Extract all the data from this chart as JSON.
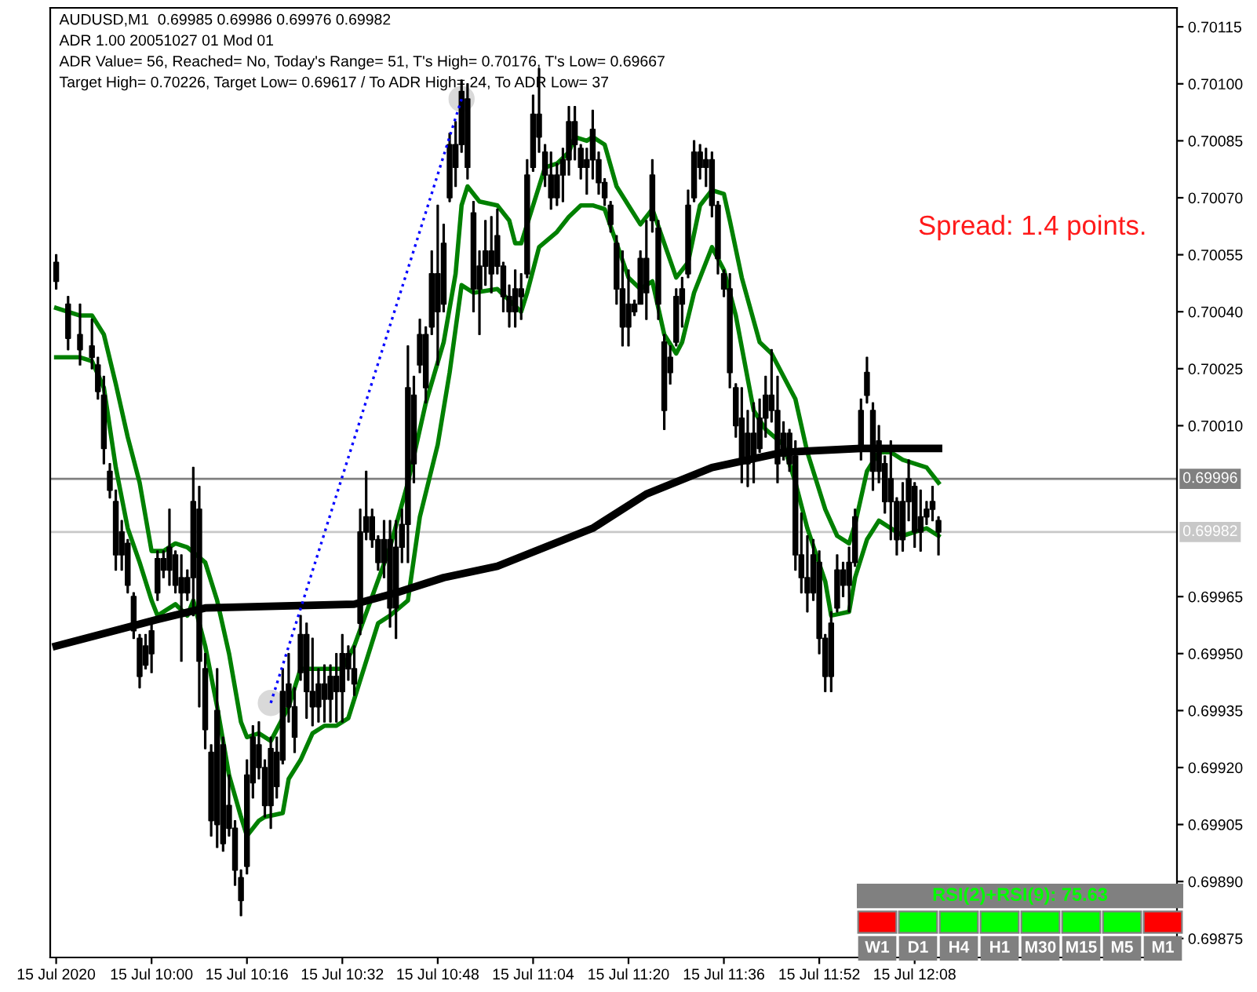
{
  "chart_data": [
    {
      "type": "candlestick",
      "color": "#000000",
      "ylim": [
        0.6987,
        0.7012
      ],
      "yticks": [
        {
          "value": 0.70115,
          "label": "0.70115"
        },
        {
          "value": 0.701,
          "label": "0.70100"
        },
        {
          "value": 0.70085,
          "label": "0.70085"
        },
        {
          "value": 0.7007,
          "label": "0.70070"
        },
        {
          "value": 0.70055,
          "label": "0.70055"
        },
        {
          "value": 0.7004,
          "label": "0.70040"
        },
        {
          "value": 0.70025,
          "label": "0.70025"
        },
        {
          "value": 0.7001,
          "label": "0.70010"
        },
        {
          "value": 0.69965,
          "label": "0.69965"
        },
        {
          "value": 0.6995,
          "label": "0.69950"
        },
        {
          "value": 0.69935,
          "label": "0.69935"
        },
        {
          "value": 0.6992,
          "label": "0.69920"
        },
        {
          "value": 0.69905,
          "label": "0.69905"
        },
        {
          "value": 0.6989,
          "label": "0.69890"
        },
        {
          "value": 0.69875,
          "label": "0.69875"
        }
      ],
      "xlim": [
        "2020-07-15T09:43",
        "2020-07-15T12:52"
      ],
      "xticks": [
        {
          "value": "2020-07-15T09:44",
          "label": "15 Jul 2020"
        },
        {
          "value": "2020-07-15T10:00",
          "label": "15 Jul 10:00"
        },
        {
          "value": "2020-07-15T10:16",
          "label": "15 Jul 10:16"
        },
        {
          "value": "2020-07-15T10:32",
          "label": "15 Jul 10:32"
        },
        {
          "value": "2020-07-15T10:48",
          "label": "15 Jul 10:48"
        },
        {
          "value": "2020-07-15T11:04",
          "label": "15 Jul 11:04"
        },
        {
          "value": "2020-07-15T11:20",
          "label": "15 Jul 11:20"
        },
        {
          "value": "2020-07-15T11:36",
          "label": "15 Jul 11:36"
        },
        {
          "value": "2020-07-15T11:52",
          "label": "15 Jul 11:52"
        },
        {
          "value": "2020-07-15T12:08",
          "label": "15 Jul 12:08"
        }
      ],
      "annotations": [
        "AUDUSD,M1  0.69985 0.69986 0.69976 0.69982",
        "ADR 1.00 20051027 01 Mod 01",
        "ADR Value= 56, Reached= No, Today's Range= 51, T's High= 0.70176, T's Low= 0.69667",
        "Target High= 0.70226, Target Low= 0.69617 / To ADR High= 24, To ADR Low= 37",
        "Spread: 1.4 points."
      ],
      "ref_lines": [
        {
          "axis": "y",
          "value": 0.69996,
          "label": "0.69996",
          "color": "#808080"
        },
        {
          "axis": "y",
          "value": 0.69982,
          "label": "0.69982",
          "color": "#c8c8c8"
        }
      ],
      "x": [
        "2020-07-15T09:44",
        "2020-07-15T09:46",
        "2020-07-15T09:48",
        "2020-07-15T09:50",
        "2020-07-15T09:51",
        "2020-07-15T09:52",
        "2020-07-15T09:53",
        "2020-07-15T09:54",
        "2020-07-15T09:55",
        "2020-07-15T09:56",
        "2020-07-15T09:57",
        "2020-07-15T09:58",
        "2020-07-15T09:59",
        "2020-07-15T10:00",
        "2020-07-15T10:01",
        "2020-07-15T10:02",
        "2020-07-15T10:03",
        "2020-07-15T10:04",
        "2020-07-15T10:05",
        "2020-07-15T10:06",
        "2020-07-15T10:07",
        "2020-07-15T10:08",
        "2020-07-15T10:09",
        "2020-07-15T10:10",
        "2020-07-15T10:11",
        "2020-07-15T10:12",
        "2020-07-15T10:13",
        "2020-07-15T10:14",
        "2020-07-15T10:15",
        "2020-07-15T10:16",
        "2020-07-15T10:17",
        "2020-07-15T10:18",
        "2020-07-15T10:19",
        "2020-07-15T10:20",
        "2020-07-15T10:21",
        "2020-07-15T10:22",
        "2020-07-15T10:23",
        "2020-07-15T10:24",
        "2020-07-15T10:25",
        "2020-07-15T10:26",
        "2020-07-15T10:27",
        "2020-07-15T10:28",
        "2020-07-15T10:29",
        "2020-07-15T10:30",
        "2020-07-15T10:31",
        "2020-07-15T10:32",
        "2020-07-15T10:33",
        "2020-07-15T10:34",
        "2020-07-15T10:35",
        "2020-07-15T10:36",
        "2020-07-15T10:37",
        "2020-07-15T10:38",
        "2020-07-15T10:39",
        "2020-07-15T10:40",
        "2020-07-15T10:41",
        "2020-07-15T10:42",
        "2020-07-15T10:43",
        "2020-07-15T10:44",
        "2020-07-15T10:45",
        "2020-07-15T10:46",
        "2020-07-15T10:47",
        "2020-07-15T10:48",
        "2020-07-15T10:49",
        "2020-07-15T10:50",
        "2020-07-15T10:51",
        "2020-07-15T10:52",
        "2020-07-15T10:53",
        "2020-07-15T10:54",
        "2020-07-15T10:55",
        "2020-07-15T10:56",
        "2020-07-15T10:57",
        "2020-07-15T10:58",
        "2020-07-15T10:59",
        "2020-07-15T11:00",
        "2020-07-15T11:01",
        "2020-07-15T11:02",
        "2020-07-15T11:03",
        "2020-07-15T11:04",
        "2020-07-15T11:05",
        "2020-07-15T11:06",
        "2020-07-15T11:07",
        "2020-07-15T11:08",
        "2020-07-15T11:09",
        "2020-07-15T11:10",
        "2020-07-15T11:11",
        "2020-07-15T11:12",
        "2020-07-15T11:13",
        "2020-07-15T11:14",
        "2020-07-15T11:15",
        "2020-07-15T11:16",
        "2020-07-15T11:17",
        "2020-07-15T11:18",
        "2020-07-15T11:19",
        "2020-07-15T11:20",
        "2020-07-15T11:21",
        "2020-07-15T11:22",
        "2020-07-15T11:23",
        "2020-07-15T11:24",
        "2020-07-15T11:25",
        "2020-07-15T11:26",
        "2020-07-15T11:27",
        "2020-07-15T11:28",
        "2020-07-15T11:29",
        "2020-07-15T11:30",
        "2020-07-15T11:31",
        "2020-07-15T11:32",
        "2020-07-15T11:33",
        "2020-07-15T11:34",
        "2020-07-15T11:35",
        "2020-07-15T11:36",
        "2020-07-15T11:37",
        "2020-07-15T11:38",
        "2020-07-15T11:39",
        "2020-07-15T11:40",
        "2020-07-15T11:41",
        "2020-07-15T11:42",
        "2020-07-15T11:43",
        "2020-07-15T11:44",
        "2020-07-15T11:45",
        "2020-07-15T11:46",
        "2020-07-15T11:47",
        "2020-07-15T11:48",
        "2020-07-15T11:49",
        "2020-07-15T11:50",
        "2020-07-15T11:51",
        "2020-07-15T11:52",
        "2020-07-15T11:53",
        "2020-07-15T11:54",
        "2020-07-15T11:55",
        "2020-07-15T11:56",
        "2020-07-15T11:57",
        "2020-07-15T11:58",
        "2020-07-15T11:59",
        "2020-07-15T12:00",
        "2020-07-15T12:01",
        "2020-07-15T12:02",
        "2020-07-15T12:03",
        "2020-07-15T12:04",
        "2020-07-15T12:05",
        "2020-07-15T12:06",
        "2020-07-15T12:07",
        "2020-07-15T12:08",
        "2020-07-15T12:09",
        "2020-07-15T12:10",
        "2020-07-15T12:11",
        "2020-07-15T12:12"
      ],
      "ohlc": [
        [
          0.70053,
          0.70055,
          0.70046,
          0.70048
        ],
        [
          0.70042,
          0.70044,
          0.7003,
          0.70033
        ],
        [
          0.70034,
          0.70042,
          0.70026,
          0.7003
        ],
        [
          0.70031,
          0.70038,
          0.70025,
          0.70028
        ],
        [
          0.70026,
          0.70028,
          0.70017,
          0.70019
        ],
        [
          0.70018,
          0.70023,
          0.7,
          0.70004
        ],
        [
          0.69998,
          0.7,
          0.69991,
          0.69993
        ],
        [
          0.6999,
          0.69993,
          0.69972,
          0.69976
        ],
        [
          0.69976,
          0.69985,
          0.69972,
          0.69982
        ],
        [
          0.69979,
          0.6998,
          0.69966,
          0.69968
        ],
        [
          0.69965,
          0.69966,
          0.69954,
          0.69956
        ],
        [
          0.69954,
          0.69955,
          0.69941,
          0.69944
        ],
        [
          0.69947,
          0.69955,
          0.69946,
          0.69952
        ],
        [
          0.6995,
          0.69958,
          0.69945,
          0.69956
        ],
        [
          0.69966,
          0.69977,
          0.69964,
          0.69975
        ],
        [
          0.69975,
          0.69977,
          0.6997,
          0.69972
        ],
        [
          0.69972,
          0.69988,
          0.69968,
          0.69978
        ],
        [
          0.69976,
          0.69977,
          0.69966,
          0.69968
        ],
        [
          0.6997,
          0.69976,
          0.69948,
          0.69966
        ],
        [
          0.69966,
          0.69972,
          0.69964,
          0.6997
        ],
        [
          0.6997,
          0.69999,
          0.6996,
          0.6999
        ],
        [
          0.69988,
          0.69994,
          0.69936,
          0.69948
        ],
        [
          0.69946,
          0.6995,
          0.69925,
          0.6993
        ],
        [
          0.69924,
          0.69926,
          0.69902,
          0.69906
        ],
        [
          0.69905,
          0.69946,
          0.69899,
          0.69935
        ],
        [
          0.69926,
          0.69928,
          0.69898,
          0.699
        ],
        [
          0.69904,
          0.69918,
          0.69902,
          0.6991
        ],
        [
          0.69904,
          0.69906,
          0.69889,
          0.69893
        ],
        [
          0.69891,
          0.69893,
          0.69881,
          0.69885
        ],
        [
          0.69894,
          0.69922,
          0.69892,
          0.69918
        ],
        [
          0.69916,
          0.69931,
          0.69912,
          0.69928
        ],
        [
          0.69926,
          0.69932,
          0.69917,
          0.6992
        ],
        [
          0.6992,
          0.69922,
          0.69907,
          0.6991
        ],
        [
          0.6991,
          0.69928,
          0.69904,
          0.69925
        ],
        [
          0.69924,
          0.69928,
          0.69912,
          0.69915
        ],
        [
          0.69922,
          0.69946,
          0.69921,
          0.6994
        ],
        [
          0.69942,
          0.6995,
          0.69932,
          0.69936
        ],
        [
          0.69936,
          0.69941,
          0.69924,
          0.69928
        ],
        [
          0.69945,
          0.6996,
          0.69943,
          0.69955
        ],
        [
          0.69955,
          0.69958,
          0.69933,
          0.6994
        ],
        [
          0.6994,
          0.69954,
          0.69931,
          0.69936
        ],
        [
          0.69936,
          0.69946,
          0.69932,
          0.69942
        ],
        [
          0.69942,
          0.69947,
          0.69932,
          0.69938
        ],
        [
          0.69938,
          0.69947,
          0.69932,
          0.69944
        ],
        [
          0.69944,
          0.6995,
          0.69932,
          0.6994
        ],
        [
          0.6994,
          0.69955,
          0.69932,
          0.6995
        ],
        [
          0.6995,
          0.69952,
          0.69943,
          0.69946
        ],
        [
          0.69946,
          0.69952,
          0.69939,
          0.69942
        ],
        [
          0.69958,
          0.69988,
          0.69955,
          0.69982
        ],
        [
          0.69982,
          0.69998,
          0.6998,
          0.69986
        ],
        [
          0.69986,
          0.69988,
          0.69978,
          0.6998
        ],
        [
          0.6998,
          0.69981,
          0.69972,
          0.69974
        ],
        [
          0.69974,
          0.69985,
          0.6997,
          0.6998
        ],
        [
          0.6998,
          0.69985,
          0.69957,
          0.69962
        ],
        [
          0.69962,
          0.69985,
          0.69954,
          0.69978
        ],
        [
          0.69978,
          0.69988,
          0.69974,
          0.69984
        ],
        [
          0.69984,
          0.70031,
          0.69974,
          0.7002
        ],
        [
          0.70018,
          0.70023,
          0.69995,
          0.7
        ],
        [
          0.70026,
          0.70038,
          0.70024,
          0.70034
        ],
        [
          0.70034,
          0.70036,
          0.70016,
          0.7002
        ],
        [
          0.70036,
          0.70056,
          0.70034,
          0.7005
        ],
        [
          0.7005,
          0.70068,
          0.70026,
          0.7004
        ],
        [
          0.70042,
          0.70063,
          0.7004,
          0.70058
        ],
        [
          0.7007,
          0.70087,
          0.70069,
          0.70084
        ],
        [
          0.70084,
          0.7009,
          0.70073,
          0.70078
        ],
        [
          0.70084,
          0.70101,
          0.70082,
          0.70098
        ],
        [
          0.70096,
          0.701,
          0.70075,
          0.70078
        ],
        [
          0.70066,
          0.70069,
          0.7004,
          0.70046
        ],
        [
          0.70046,
          0.70056,
          0.70034,
          0.70052
        ],
        [
          0.70052,
          0.70064,
          0.70047,
          0.70056
        ],
        [
          0.70056,
          0.70065,
          0.70045,
          0.7005
        ],
        [
          0.70052,
          0.70067,
          0.7005,
          0.7006
        ],
        [
          0.70052,
          0.70053,
          0.7004,
          0.70044
        ],
        [
          0.70044,
          0.70047,
          0.70036,
          0.7004
        ],
        [
          0.7004,
          0.70051,
          0.70036,
          0.70046
        ],
        [
          0.70046,
          0.7005,
          0.70038,
          0.70044
        ],
        [
          0.7005,
          0.7008,
          0.70049,
          0.70076
        ],
        [
          0.70078,
          0.70097,
          0.70077,
          0.70092
        ],
        [
          0.70092,
          0.70104,
          0.70082,
          0.70086
        ],
        [
          0.70082,
          0.70084,
          0.70073,
          0.70076
        ],
        [
          0.70076,
          0.70082,
          0.70067,
          0.7007
        ],
        [
          0.7007,
          0.70079,
          0.70068,
          0.70076
        ],
        [
          0.70076,
          0.70083,
          0.70069,
          0.7008
        ],
        [
          0.7008,
          0.70094,
          0.70076,
          0.7009
        ],
        [
          0.7009,
          0.70094,
          0.7008,
          0.70084
        ],
        [
          0.70083,
          0.70084,
          0.70075,
          0.70078
        ],
        [
          0.70078,
          0.70083,
          0.70071,
          0.7008
        ],
        [
          0.7008,
          0.70093,
          0.70075,
          0.70088
        ],
        [
          0.7008,
          0.70082,
          0.70071,
          0.70074
        ],
        [
          0.70074,
          0.70075,
          0.70068,
          0.7007
        ],
        [
          0.70068,
          0.70069,
          0.70061,
          0.70063
        ],
        [
          0.70058,
          0.7006,
          0.70042,
          0.70046
        ],
        [
          0.70046,
          0.70056,
          0.70031,
          0.70036
        ],
        [
          0.70036,
          0.70051,
          0.70031,
          0.70042
        ],
        [
          0.70042,
          0.70043,
          0.70039,
          0.7004
        ],
        [
          0.70042,
          0.70056,
          0.70042,
          0.70054
        ],
        [
          0.70054,
          0.70064,
          0.70038,
          0.70045
        ],
        [
          0.70064,
          0.7008,
          0.70061,
          0.70076
        ],
        [
          0.70062,
          0.70064,
          0.70038,
          0.70042
        ],
        [
          0.70032,
          0.70034,
          0.70009,
          0.70014
        ],
        [
          0.70024,
          0.70031,
          0.70021,
          0.70028
        ],
        [
          0.70032,
          0.70046,
          0.70031,
          0.70044
        ],
        [
          0.70042,
          0.70049,
          0.70036,
          0.70046
        ],
        [
          0.7005,
          0.70072,
          0.70049,
          0.70068
        ],
        [
          0.7007,
          0.70085,
          0.70069,
          0.70082
        ],
        [
          0.70082,
          0.70084,
          0.70075,
          0.70078
        ],
        [
          0.70078,
          0.70083,
          0.70073,
          0.7008
        ],
        [
          0.7008,
          0.70082,
          0.70065,
          0.70068
        ],
        [
          0.70068,
          0.70069,
          0.7005,
          0.70054
        ],
        [
          0.7005,
          0.70051,
          0.70044,
          0.70046
        ],
        [
          0.70046,
          0.7005,
          0.7002,
          0.70024
        ],
        [
          0.7002,
          0.70021,
          0.70007,
          0.7001
        ],
        [
          0.70012,
          0.7002,
          0.69995,
          0.7
        ],
        [
          0.7,
          0.70014,
          0.69994,
          0.70008
        ],
        [
          0.70008,
          0.70016,
          0.69995,
          0.70002
        ],
        [
          0.70004,
          0.70017,
          0.70003,
          0.70012
        ],
        [
          0.70012,
          0.70023,
          0.70007,
          0.70018
        ],
        [
          0.70018,
          0.7003,
          0.70011,
          0.70014
        ],
        [
          0.70014,
          0.70023,
          0.69995,
          0.7
        ],
        [
          0.70002,
          0.70011,
          0.70001,
          0.70008
        ],
        [
          0.70008,
          0.70009,
          0.69998,
          0.7
        ],
        [
          0.70002,
          0.70006,
          0.69972,
          0.69976
        ],
        [
          0.69976,
          0.69987,
          0.69966,
          0.6997
        ],
        [
          0.6997,
          0.69981,
          0.69961,
          0.69966
        ],
        [
          0.69966,
          0.6998,
          0.69964,
          0.69976
        ],
        [
          0.69974,
          0.69977,
          0.6995,
          0.69954
        ],
        [
          0.69954,
          0.69955,
          0.6994,
          0.69944
        ],
        [
          0.69944,
          0.69961,
          0.6994,
          0.69958
        ],
        [
          0.69962,
          0.69976,
          0.69961,
          0.69972
        ],
        [
          0.69972,
          0.69974,
          0.69965,
          0.69968
        ],
        [
          0.69968,
          0.69978,
          0.69961,
          0.69974
        ],
        [
          0.69974,
          0.69988,
          0.69973,
          0.69986
        ],
        [
          0.70004,
          0.70017,
          0.70001,
          0.70014
        ],
        [
          0.70018,
          0.70028,
          0.70016,
          0.70024
        ],
        [
          0.70014,
          0.70016,
          0.69993,
          0.69998
        ],
        [
          0.69998,
          0.7001,
          0.69995,
          0.70006
        ],
        [
          0.7,
          0.70002,
          0.69987,
          0.6999
        ],
        [
          0.6999,
          0.70006,
          0.6998,
          0.69996
        ],
        [
          0.6999,
          0.69991,
          0.69976,
          0.6998
        ],
        [
          0.6998,
          0.69995,
          0.69977,
          0.6999
        ],
        [
          0.6999,
          0.70001,
          0.69985,
          0.69996
        ],
        [
          0.69994,
          0.69995,
          0.69978,
          0.69982
        ],
        [
          0.69982,
          0.69993,
          0.69977,
          0.69986
        ],
        [
          0.69986,
          0.6999,
          0.69984,
          0.69988
        ],
        [
          0.69988,
          0.69994,
          0.69985,
          0.6999
        ],
        [
          0.69985,
          0.69986,
          0.69976,
          0.69982
        ]
      ],
      "series": [
        {
          "type": "line",
          "color": "#008000",
          "x": [
            "2020-07-15T09:44",
            "2020-07-15T09:48",
            "2020-07-15T09:50",
            "2020-07-15T09:52",
            "2020-07-15T09:54",
            "2020-07-15T09:56",
            "2020-07-15T09:58",
            "2020-07-15T10:00",
            "2020-07-15T10:02",
            "2020-07-15T10:04",
            "2020-07-15T10:06",
            "2020-07-15T10:09",
            "2020-07-15T10:11",
            "2020-07-15T10:13",
            "2020-07-15T10:15",
            "2020-07-15T10:16",
            "2020-07-15T10:18",
            "2020-07-15T10:20",
            "2020-07-15T10:23",
            "2020-07-15T10:25",
            "2020-07-15T10:28",
            "2020-07-15T10:32",
            "2020-07-15T10:34",
            "2020-07-15T10:40",
            "2020-07-15T10:43",
            "2020-07-15T10:46",
            "2020-07-15T10:49",
            "2020-07-15T10:51",
            "2020-07-15T10:52",
            "2020-07-15T10:53",
            "2020-07-15T10:55",
            "2020-07-15T10:58",
            "2020-07-15T11:00",
            "2020-07-15T11:01",
            "2020-07-15T11:02",
            "2020-07-15T11:05",
            "2020-07-15T11:06",
            "2020-07-15T11:08",
            "2020-07-15T11:10",
            "2020-07-15T11:11",
            "2020-07-15T11:13",
            "2020-07-15T11:14",
            "2020-07-15T11:16",
            "2020-07-15T11:18",
            "2020-07-15T11:20",
            "2020-07-15T11:22",
            "2020-07-15T11:24",
            "2020-07-15T11:28",
            "2020-07-15T11:30",
            "2020-07-15T11:32",
            "2020-07-15T11:34",
            "2020-07-15T11:36",
            "2020-07-15T11:37",
            "2020-07-15T11:39",
            "2020-07-15T11:42",
            "2020-07-15T11:44",
            "2020-07-15T11:46",
            "2020-07-15T11:48",
            "2020-07-15T11:50",
            "2020-07-15T11:53",
            "2020-07-15T11:55",
            "2020-07-15T11:57",
            "2020-07-15T11:58",
            "2020-07-15T12:00",
            "2020-07-15T12:02",
            "2020-07-15T12:04",
            "2020-07-15T12:06",
            "2020-07-15T12:10",
            "2020-07-15T12:12"
          ],
          "values": [
            0.70041,
            0.70039,
            0.70039,
            0.70034,
            0.70021,
            0.70007,
            0.69995,
            0.69977,
            0.69977,
            0.69979,
            0.69978,
            0.69974,
            0.69964,
            0.6995,
            0.69932,
            0.69928,
            0.69929,
            0.69927,
            0.69936,
            0.69946,
            0.69946,
            0.69946,
            0.69952,
            0.69978,
            0.69995,
            0.70016,
            0.70032,
            0.7005,
            0.70068,
            0.70073,
            0.70069,
            0.70068,
            0.70064,
            0.70058,
            0.70058,
            0.70073,
            0.70078,
            0.70079,
            0.70082,
            0.70086,
            0.70085,
            0.70086,
            0.70084,
            0.70073,
            0.70068,
            0.70063,
            0.70067,
            0.70049,
            0.70053,
            0.70068,
            0.70072,
            0.70071,
            0.70064,
            0.70049,
            0.70032,
            0.70029,
            0.70023,
            0.70017,
            0.70003,
            0.69988,
            0.69981,
            0.69979,
            0.69984,
            0.69998,
            0.70003,
            0.70003,
            0.70001,
            0.69999,
            0.69995
          ]
        },
        {
          "type": "line",
          "color": "#008000",
          "x": [
            "2020-07-15T09:44",
            "2020-07-15T09:48",
            "2020-07-15T09:50",
            "2020-07-15T09:52",
            "2020-07-15T09:54",
            "2020-07-15T09:56",
            "2020-07-15T09:58",
            "2020-07-15T10:00",
            "2020-07-15T10:01",
            "2020-07-15T10:04",
            "2020-07-15T10:06",
            "2020-07-15T10:07",
            "2020-07-15T10:09",
            "2020-07-15T10:11",
            "2020-07-15T10:13",
            "2020-07-15T10:15",
            "2020-07-15T10:16",
            "2020-07-15T10:18",
            "2020-07-15T10:19",
            "2020-07-15T10:22",
            "2020-07-15T10:23",
            "2020-07-15T10:25",
            "2020-07-15T10:27",
            "2020-07-15T10:29",
            "2020-07-15T10:31",
            "2020-07-15T10:33",
            "2020-07-15T10:38",
            "2020-07-15T10:40",
            "2020-07-15T10:43",
            "2020-07-15T10:45",
            "2020-07-15T10:48",
            "2020-07-15T10:50",
            "2020-07-15T10:52",
            "2020-07-15T10:54",
            "2020-07-15T10:58",
            "2020-07-15T11:00",
            "2020-07-15T11:02",
            "2020-07-15T11:03",
            "2020-07-15T11:05",
            "2020-07-15T11:08",
            "2020-07-15T11:10",
            "2020-07-15T11:12",
            "2020-07-15T11:14",
            "2020-07-15T11:16",
            "2020-07-15T11:18",
            "2020-07-15T11:20",
            "2020-07-15T11:22",
            "2020-07-15T11:24",
            "2020-07-15T11:26",
            "2020-07-15T11:28",
            "2020-07-15T11:29",
            "2020-07-15T11:31",
            "2020-07-15T11:34",
            "2020-07-15T11:36",
            "2020-07-15T11:38",
            "2020-07-15T11:41",
            "2020-07-15T11:43",
            "2020-07-15T11:46",
            "2020-07-15T11:48",
            "2020-07-15T11:50",
            "2020-07-15T11:53",
            "2020-07-15T11:54",
            "2020-07-15T11:57",
            "2020-07-15T11:58",
            "2020-07-15T12:00",
            "2020-07-15T12:02",
            "2020-07-15T12:04",
            "2020-07-15T12:06",
            "2020-07-15T12:08",
            "2020-07-15T12:10",
            "2020-07-15T12:12"
          ],
          "values": [
            0.70028,
            0.70028,
            0.70027,
            0.7002,
            0.69999,
            0.69983,
            0.69974,
            0.69964,
            0.6996,
            0.69963,
            0.6996,
            0.69964,
            0.69952,
            0.69936,
            0.69918,
            0.69907,
            0.69902,
            0.69906,
            0.69907,
            0.69908,
            0.69917,
            0.69922,
            0.69929,
            0.69931,
            0.69931,
            0.69933,
            0.69958,
            0.6996,
            0.69964,
            0.69986,
            0.70005,
            0.70024,
            0.70047,
            0.70045,
            0.70046,
            0.70043,
            0.7004,
            0.70045,
            0.70057,
            0.70061,
            0.70065,
            0.70068,
            0.70068,
            0.70067,
            0.70058,
            0.70049,
            0.70046,
            0.70048,
            0.70034,
            0.70029,
            0.70032,
            0.70045,
            0.70057,
            0.70051,
            0.70039,
            0.70014,
            0.70009,
            0.70005,
            0.69995,
            0.69983,
            0.69969,
            0.6996,
            0.69961,
            0.6997,
            0.6998,
            0.69985,
            0.69983,
            0.69981,
            0.69982,
            0.69983,
            0.69981
          ]
        },
        {
          "type": "line",
          "color": "#000000",
          "x": [
            "2020-07-15T09:44",
            "2020-07-15T10:01",
            "2020-07-15T10:09",
            "2020-07-15T10:34",
            "2020-07-15T10:41",
            "2020-07-15T10:49",
            "2020-07-15T10:58",
            "2020-07-15T11:06",
            "2020-07-15T11:14",
            "2020-07-15T11:23",
            "2020-07-15T11:34",
            "2020-07-15T11:46",
            "2020-07-15T11:59",
            "2020-07-15T12:12"
          ],
          "values": [
            0.69952,
            0.69959,
            0.69962,
            0.69963,
            0.69966,
            0.6997,
            0.69973,
            0.69978,
            0.69983,
            0.69992,
            0.69999,
            0.70003,
            0.70004,
            0.70004
          ]
        },
        {
          "type": "line",
          "color": "#0000ff",
          "line_style": "dotted",
          "marker": "circle",
          "x": [
            "2020-07-15T10:20",
            "2020-07-15T10:52"
          ],
          "values": [
            0.69937,
            0.70096
          ]
        }
      ]
    },
    {
      "type": "other",
      "title": "RSI(2)+RSI(9): 75.63",
      "categories": [
        "W1",
        "D1",
        "H4",
        "H1",
        "M30",
        "M15",
        "M5",
        "M1"
      ],
      "colors": [
        "#ff0000",
        "#00ff00",
        "#00ff00",
        "#00ff00",
        "#00ff00",
        "#00ff00",
        "#00ff00",
        "#ff0000"
      ]
    }
  ]
}
